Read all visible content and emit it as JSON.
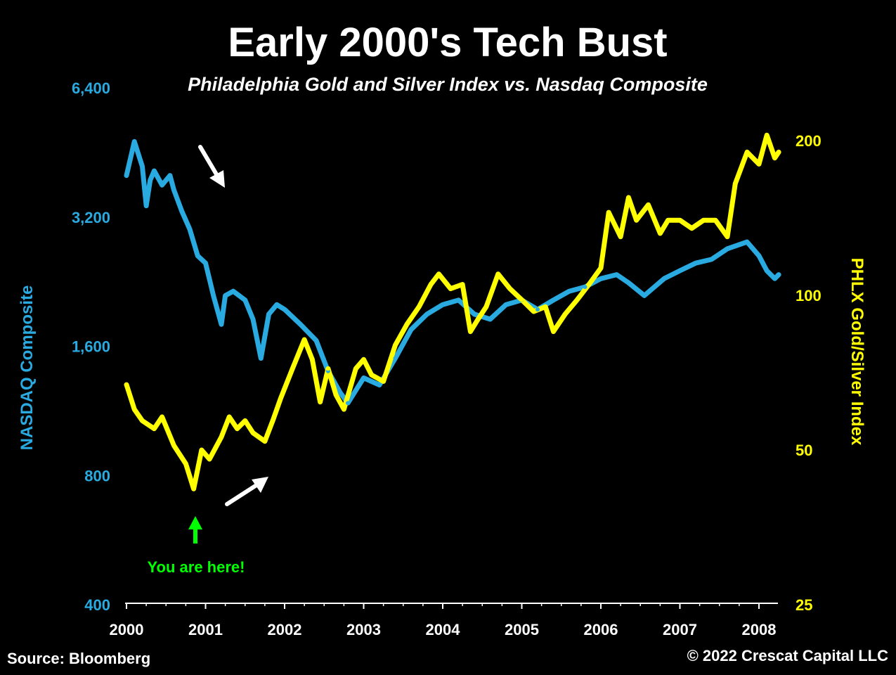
{
  "colors": {
    "background": "#000000",
    "nasdaq": "#29aae1",
    "gold_silver": "#ffff00",
    "annotation": "#00ff00",
    "text": "#ffffff"
  },
  "chart_data": {
    "type": "line",
    "title": "Early 2000's Tech Bust",
    "subtitle": "Philadelphia Gold and Silver Index vs. Nasdaq Composite",
    "xlabel": "",
    "x_ticks": [
      "2000",
      "2001",
      "2002",
      "2003",
      "2004",
      "2005",
      "2006",
      "2007",
      "2008"
    ],
    "xlim": [
      2000.0,
      2008.25
    ],
    "y_left": {
      "label": "NASDAQ Composite",
      "scale": "log",
      "ticks": [
        "400",
        "800",
        "1,600",
        "3,200",
        "6,400"
      ],
      "tick_values": [
        400,
        800,
        1600,
        3200,
        6400
      ],
      "range": [
        400,
        6400
      ]
    },
    "y_right": {
      "label": "PHLX Gold/Silver Index",
      "scale": "log",
      "ticks": [
        "25",
        "50",
        "100",
        "200"
      ],
      "tick_values": [
        25,
        50,
        100,
        200
      ],
      "range": [
        25,
        250
      ]
    },
    "series": [
      {
        "name": "NASDAQ Composite",
        "axis": "left",
        "color": "#29aae1",
        "x": [
          2000.0,
          2000.1,
          2000.2,
          2000.25,
          2000.3,
          2000.35,
          2000.45,
          2000.55,
          2000.6,
          2000.7,
          2000.8,
          2000.9,
          2001.0,
          2001.1,
          2001.2,
          2001.25,
          2001.35,
          2001.5,
          2001.6,
          2001.7,
          2001.8,
          2001.9,
          2002.0,
          2002.2,
          2002.4,
          2002.55,
          2002.7,
          2002.8,
          2003.0,
          2003.2,
          2003.4,
          2003.6,
          2003.8,
          2004.0,
          2004.2,
          2004.4,
          2004.6,
          2004.8,
          2005.0,
          2005.2,
          2005.4,
          2005.6,
          2005.8,
          2006.0,
          2006.2,
          2006.35,
          2006.55,
          2006.8,
          2007.0,
          2007.2,
          2007.4,
          2007.6,
          2007.85,
          2008.0,
          2008.1,
          2008.2,
          2008.25
        ],
        "values": [
          4000,
          4800,
          4200,
          3400,
          3900,
          4100,
          3800,
          4000,
          3700,
          3300,
          3000,
          2600,
          2500,
          2100,
          1800,
          2100,
          2150,
          2050,
          1850,
          1500,
          1900,
          2000,
          1950,
          1800,
          1650,
          1400,
          1250,
          1180,
          1350,
          1300,
          1500,
          1750,
          1900,
          2000,
          2050,
          1900,
          1850,
          2000,
          2050,
          1950,
          2050,
          2150,
          2200,
          2300,
          2350,
          2250,
          2100,
          2300,
          2400,
          2500,
          2550,
          2700,
          2800,
          2600,
          2400,
          2300,
          2350
        ]
      },
      {
        "name": "PHLX Gold/Silver Index",
        "axis": "right",
        "color": "#ffff00",
        "x": [
          2000.0,
          2000.1,
          2000.2,
          2000.35,
          2000.45,
          2000.6,
          2000.75,
          2000.85,
          2000.95,
          2001.05,
          2001.2,
          2001.3,
          2001.4,
          2001.5,
          2001.6,
          2001.75,
          2001.85,
          2001.95,
          2002.1,
          2002.25,
          2002.35,
          2002.45,
          2002.55,
          2002.65,
          2002.75,
          2002.9,
          2003.0,
          2003.1,
          2003.25,
          2003.4,
          2003.55,
          2003.7,
          2003.85,
          2003.95,
          2004.1,
          2004.25,
          2004.35,
          2004.45,
          2004.55,
          2004.7,
          2004.85,
          2005.0,
          2005.15,
          2005.3,
          2005.4,
          2005.55,
          2005.7,
          2005.85,
          2006.0,
          2006.1,
          2006.25,
          2006.35,
          2006.45,
          2006.6,
          2006.75,
          2006.85,
          2007.0,
          2007.15,
          2007.3,
          2007.45,
          2007.6,
          2007.7,
          2007.85,
          2008.0,
          2008.1,
          2008.2,
          2008.25
        ],
        "values": [
          67,
          60,
          57,
          55,
          58,
          51,
          47,
          42,
          50,
          48,
          53,
          58,
          55,
          57,
          54,
          52,
          57,
          63,
          72,
          82,
          75,
          62,
          72,
          64,
          60,
          72,
          75,
          70,
          68,
          80,
          88,
          95,
          105,
          110,
          103,
          105,
          85,
          90,
          95,
          110,
          103,
          98,
          93,
          95,
          85,
          92,
          98,
          105,
          113,
          145,
          130,
          155,
          140,
          150,
          132,
          140,
          140,
          135,
          140,
          140,
          130,
          165,
          190,
          180,
          205,
          185,
          190
        ]
      }
    ],
    "annotations": [
      {
        "text": "You are here!",
        "color": "#00ff00"
      }
    ],
    "grid": false,
    "legend": "none"
  },
  "footer": {
    "source": "Source: Bloomberg",
    "copyright": "© 2022 Crescat Capital LLC"
  }
}
